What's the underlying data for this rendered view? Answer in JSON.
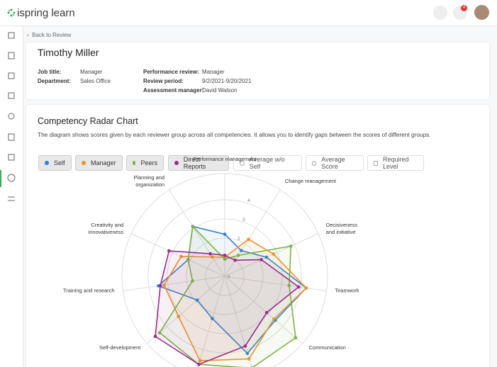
{
  "header": {
    "logo": "ispring learn",
    "notification_count": "4"
  },
  "breadcrumb": "Back to Review",
  "profile": {
    "name": "Timothy Miller",
    "left": [
      {
        "label": "Job title:",
        "value": "Manager"
      },
      {
        "label": "Department:",
        "value": "Sales Office"
      }
    ],
    "right": [
      {
        "label": "Performance review:",
        "value": "Manager"
      },
      {
        "label": "Review period:",
        "value": "9/2/2021-9/20/2021"
      },
      {
        "label": "Assessment manager:",
        "value": "David Watson"
      }
    ]
  },
  "chart_data": {
    "type": "radar",
    "title": "Competency Radar Chart",
    "description": "The diagram shows scores given by each reviewer group across all competencies. It allows you to identify gaps between the scores of different groups.",
    "categories": [
      "Performance management",
      "Change management",
      "Decisiveness\nand initiative",
      "Teamwork",
      "Communication",
      null,
      null,
      "Self-development",
      "Training and research",
      "Creativity and\ninnovativeness",
      "Planning and\norganization"
    ],
    "series": [
      {
        "name": "Self",
        "color": "#2f7fd6",
        "values": [
          2.2,
          1.6,
          2.4,
          4.3,
          3.5,
          4.2,
          2.3,
          1.9,
          3.5,
          2.1,
          3.1
        ]
      },
      {
        "name": "Manager",
        "color": "#f0922b",
        "values": [
          1.0,
          2.3,
          2.8,
          4.3,
          3.4,
          4.5,
          4.6,
          3.2,
          3.2,
          2.5,
          1.2
        ]
      },
      {
        "name": "Peers",
        "color": "#7cb342",
        "values": [
          0.9,
          1.3,
          3.8,
          3.4,
          4.9,
          5.0,
          4.8,
          4.5,
          1.7,
          2.1,
          3.1
        ]
      },
      {
        "name": "Direct Reports",
        "color": "#9c2a8f",
        "values": [
          1.1,
          1.0,
          2.1,
          3.9,
          2.9,
          3.8,
          4.8,
          4.8,
          3.4,
          3.2,
          1.4
        ]
      }
    ],
    "inactive_series": [
      "Average w/o Self",
      "Average Score",
      "Required Level"
    ],
    "rlim": [
      0,
      5
    ],
    "rticks": [
      0,
      1,
      2,
      3,
      4
    ],
    "grid": true
  }
}
